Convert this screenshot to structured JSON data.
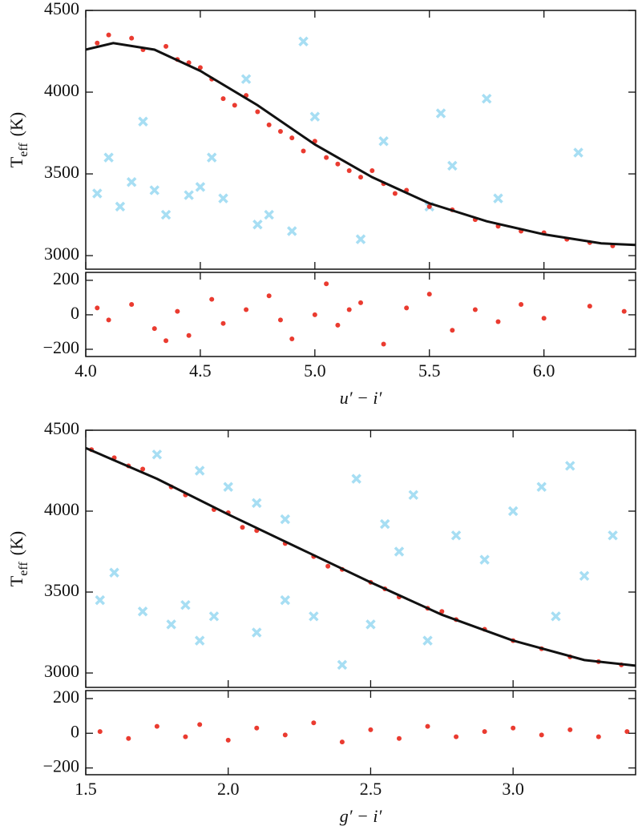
{
  "chart_data": [
    {
      "type": "scatter",
      "ylabel": [
        "T",
        "eff",
        "(K)"
      ],
      "ylim": [
        2917,
        4500
      ],
      "yticks": [
        3000,
        3500,
        4000,
        4500
      ],
      "series": [
        {
          "kind": "cross",
          "color": "#5ec3ea",
          "x": [
            4.05,
            4.1,
            4.2,
            4.3,
            4.35,
            4.45,
            4.5,
            4.6,
            4.25,
            4.7,
            4.8,
            4.9,
            5.0,
            5.3,
            5.5,
            5.6,
            5.8,
            4.95,
            5.55,
            5.75,
            6.15,
            5.2,
            4.75,
            4.55,
            4.15
          ],
          "values": [
            3380,
            3600,
            3450,
            3400,
            3250,
            3370,
            3420,
            3350,
            3820,
            4080,
            3250,
            3150,
            3850,
            3700,
            3300,
            3550,
            3350,
            4310,
            3870,
            3960,
            3630,
            3100,
            3190,
            3600,
            3300
          ]
        },
        {
          "kind": "dot",
          "color": "#e8261a",
          "x": [
            4.05,
            4.1,
            4.2,
            4.25,
            4.35,
            4.4,
            4.5,
            4.55,
            4.6,
            4.7,
            4.75,
            4.8,
            4.85,
            4.9,
            4.95,
            5.0,
            5.05,
            5.1,
            5.15,
            5.2,
            5.3,
            5.35,
            5.4,
            5.5,
            5.6,
            5.7,
            5.8,
            5.9,
            6.0,
            6.1,
            6.2,
            6.3,
            4.65,
            5.25,
            4.45
          ],
          "values": [
            4300,
            4350,
            4330,
            4260,
            4280,
            4200,
            4150,
            4080,
            3960,
            3980,
            3880,
            3800,
            3760,
            3720,
            3640,
            3700,
            3600,
            3560,
            3520,
            3480,
            3440,
            3380,
            3400,
            3300,
            3280,
            3220,
            3180,
            3150,
            3140,
            3100,
            3080,
            3060,
            3920,
            3520,
            4180
          ]
        },
        {
          "kind": "line",
          "color": "#111111",
          "x": [
            4.0,
            4.12,
            4.3,
            4.5,
            4.75,
            5.0,
            5.25,
            5.5,
            5.75,
            6.0,
            6.25,
            6.4
          ],
          "values": [
            4260,
            4300,
            4260,
            4130,
            3920,
            3680,
            3480,
            3320,
            3210,
            3130,
            3075,
            3065
          ]
        }
      ]
    },
    {
      "type": "scatter",
      "xlabel": "u′ − i′",
      "xlim": [
        4.0,
        6.4
      ],
      "xticks": [
        {
          "value": 4,
          "label": "4.0"
        },
        4.5,
        {
          "value": 5,
          "label": "5.0"
        },
        5.5,
        {
          "value": 6,
          "label": "6.0"
        }
      ],
      "ylim": [
        -242,
        246
      ],
      "yticks": [
        {
          "value": -200,
          "label": "−200"
        },
        0,
        200
      ],
      "series": [
        {
          "kind": "dot",
          "color": "#e8261a",
          "x": [
            4.05,
            4.1,
            4.2,
            4.3,
            4.4,
            4.45,
            4.55,
            4.6,
            4.7,
            4.8,
            4.9,
            5.0,
            5.05,
            5.1,
            5.2,
            5.3,
            5.4,
            5.5,
            5.6,
            5.7,
            5.8,
            5.9,
            6.0,
            6.2,
            6.35,
            4.85,
            5.15,
            4.35
          ],
          "values": [
            40,
            -30,
            60,
            -80,
            20,
            -120,
            90,
            -50,
            30,
            110,
            -140,
            0,
            180,
            -60,
            70,
            -170,
            40,
            120,
            -90,
            30,
            -40,
            60,
            -20,
            50,
            20,
            -30,
            30,
            -150
          ]
        }
      ]
    },
    {
      "type": "scatter",
      "ylabel": [
        "T",
        "eff",
        "(K)"
      ],
      "ylim": [
        2911,
        4500
      ],
      "yticks": [
        3000,
        3500,
        4000,
        4500
      ],
      "series": [
        {
          "kind": "cross",
          "color": "#5ec3ea",
          "x": [
            1.55,
            1.6,
            1.7,
            1.8,
            1.85,
            1.9,
            1.95,
            2.1,
            2.2,
            2.3,
            1.75,
            1.9,
            2.0,
            2.1,
            2.2,
            2.45,
            2.55,
            2.65,
            2.8,
            2.9,
            3.0,
            3.1,
            3.2,
            3.25,
            3.35,
            2.5,
            2.7,
            2.4,
            3.15,
            2.6
          ],
          "values": [
            3450,
            3620,
            3380,
            3300,
            3420,
            3200,
            3350,
            3250,
            3450,
            3350,
            4350,
            4250,
            4150,
            4050,
            3950,
            4200,
            3920,
            4100,
            3850,
            3700,
            4000,
            4150,
            4280,
            3600,
            3850,
            3300,
            3200,
            3050,
            3350,
            3750
          ]
        },
        {
          "kind": "dot",
          "color": "#e8261a",
          "x": [
            1.52,
            1.6,
            1.7,
            1.8,
            1.85,
            1.95,
            2.0,
            2.05,
            2.1,
            2.2,
            2.3,
            2.4,
            2.5,
            2.55,
            2.6,
            2.7,
            2.8,
            2.9,
            3.0,
            3.1,
            3.2,
            3.3,
            3.38,
            2.35,
            2.75,
            1.65
          ],
          "values": [
            4380,
            4330,
            4260,
            4150,
            4100,
            4010,
            3990,
            3900,
            3880,
            3800,
            3720,
            3640,
            3560,
            3520,
            3470,
            3400,
            3330,
            3270,
            3200,
            3150,
            3100,
            3070,
            3050,
            3660,
            3380,
            4280
          ]
        },
        {
          "kind": "line",
          "color": "#111111",
          "x": [
            1.5,
            1.75,
            2.0,
            2.25,
            2.5,
            2.75,
            3.0,
            3.25,
            3.43
          ],
          "values": [
            4390,
            4200,
            3980,
            3770,
            3560,
            3360,
            3200,
            3080,
            3045
          ]
        }
      ]
    },
    {
      "type": "scatter",
      "xlabel": "g′ − i′",
      "xlim": [
        1.5,
        3.43
      ],
      "xticks": [
        1.5,
        {
          "value": 2,
          "label": "2.0"
        },
        2.5,
        {
          "value": 3,
          "label": "3.0"
        }
      ],
      "ylim": [
        -239,
        246
      ],
      "yticks": [
        {
          "value": -200,
          "label": "−200"
        },
        0,
        200
      ],
      "series": [
        {
          "kind": "dot",
          "color": "#e8261a",
          "x": [
            1.55,
            1.65,
            1.75,
            1.85,
            1.9,
            2.0,
            2.1,
            2.2,
            2.3,
            2.4,
            2.5,
            2.6,
            2.7,
            2.8,
            2.9,
            3.0,
            3.1,
            3.2,
            3.3,
            3.4
          ],
          "values": [
            10,
            -30,
            40,
            -20,
            50,
            -40,
            30,
            -10,
            60,
            -50,
            20,
            -30,
            40,
            -20,
            10,
            30,
            -10,
            20,
            -20,
            10
          ]
        }
      ]
    }
  ]
}
